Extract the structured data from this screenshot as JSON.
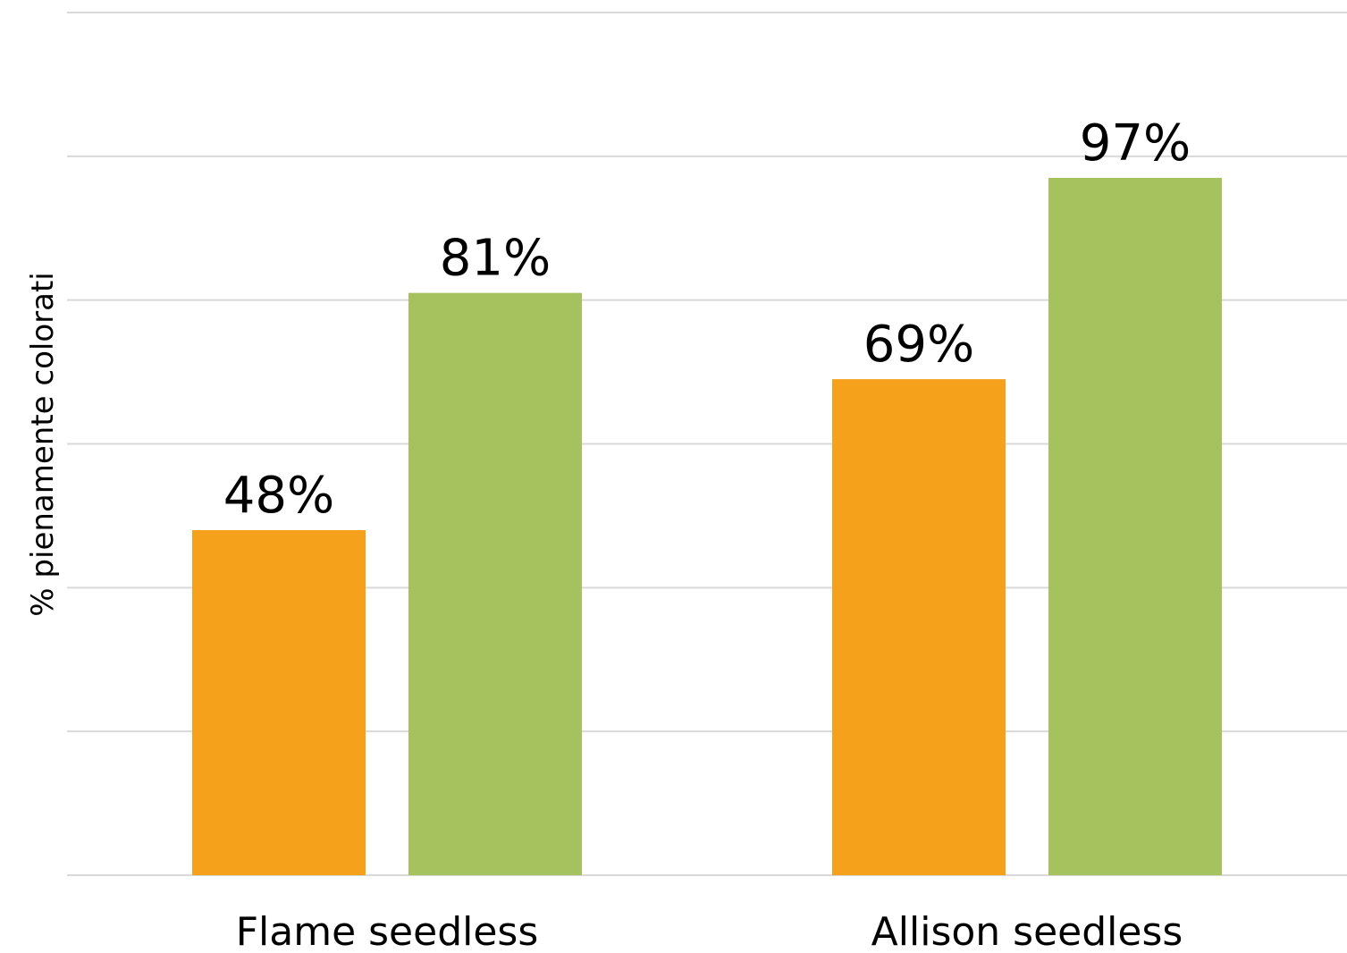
{
  "chart_data": {
    "type": "bar",
    "categories": [
      "Flame seedless",
      "Allison seedless"
    ],
    "series": [
      {
        "values": [
          48,
          69
        ],
        "color": "#F5A11B"
      },
      {
        "values": [
          81,
          97
        ],
        "color": "#A5C25E"
      }
    ],
    "data_labels": [
      [
        "48%",
        "69%"
      ],
      [
        "81%",
        "97%"
      ]
    ],
    "ylabel": "% pienamente colorati",
    "ylim": [
      0,
      120
    ],
    "y_ticks": [
      0,
      20,
      40,
      60,
      80,
      100,
      120
    ],
    "y_tick_labels_visible": false,
    "grid": true,
    "legend": "none"
  }
}
